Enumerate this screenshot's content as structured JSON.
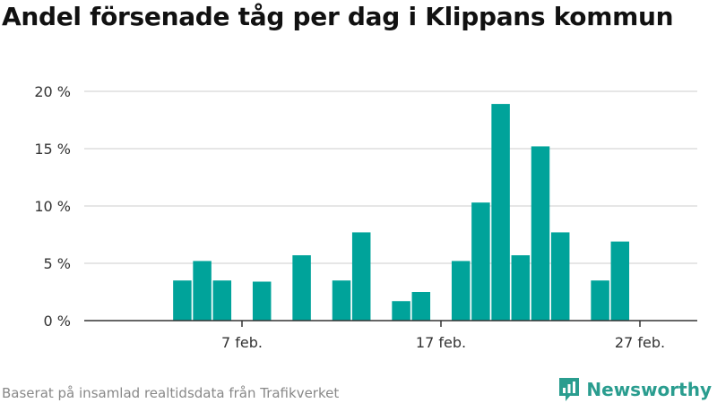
{
  "title": "Andel försenade tåg per dag i Klippans kommun",
  "footer": "Baserat på insamlad realtidsdata från Trafikverket",
  "brand": {
    "name": "Newsworthy",
    "icon": "newsworthy-logo-icon",
    "color": "#2a9d8f"
  },
  "chart_data": {
    "type": "bar",
    "title": "Andel försenade tåg per dag i Klippans kommun",
    "bar_color": "#00a39a",
    "x_ticks": [
      {
        "day": 7,
        "label": "7 feb."
      },
      {
        "day": 17,
        "label": "17 feb."
      },
      {
        "day": 27,
        "label": "27 feb."
      }
    ],
    "y_ticks": [
      {
        "value": 0,
        "label": "0 %"
      },
      {
        "value": 5,
        "label": "5 %"
      },
      {
        "value": 10,
        "label": "10 %"
      },
      {
        "value": 15,
        "label": "15 %"
      },
      {
        "value": 20,
        "label": "20 %"
      }
    ],
    "xlim": [
      1,
      30
    ],
    "ylim": [
      0,
      20
    ],
    "grid": true,
    "series": [
      {
        "days": [
          4,
          5,
          6,
          8,
          10,
          12,
          13,
          15,
          16,
          18,
          19,
          20,
          21,
          22,
          23,
          25,
          26
        ],
        "values": [
          3.5,
          5.2,
          3.5,
          3.4,
          5.7,
          3.5,
          7.7,
          1.7,
          2.5,
          5.2,
          10.3,
          18.9,
          5.7,
          15.2,
          7.7,
          3.5,
          6.9
        ]
      }
    ]
  }
}
